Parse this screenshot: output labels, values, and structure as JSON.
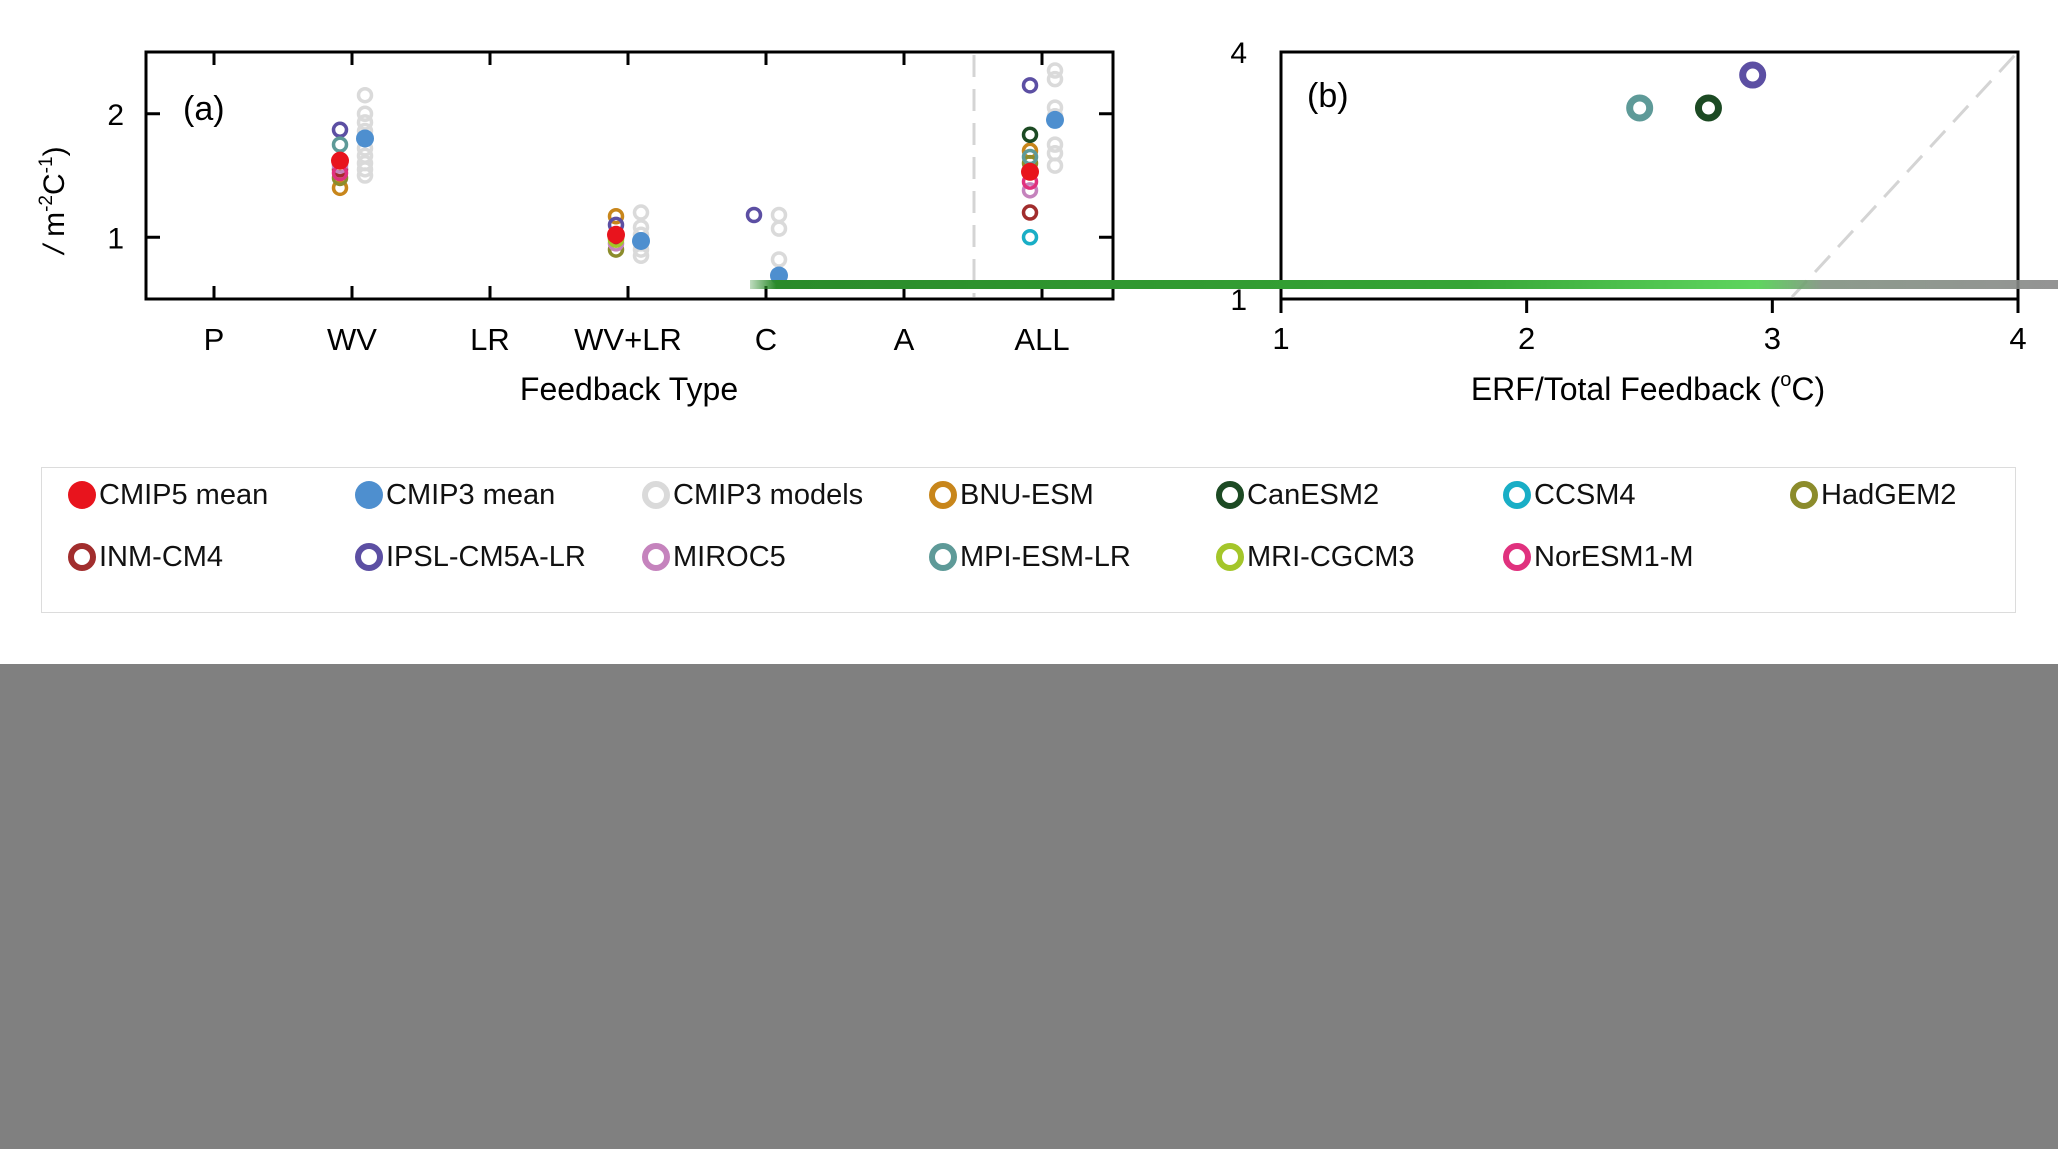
{
  "chart_data": [
    {
      "panel_label": "(a)",
      "type": "scatter",
      "xlabel": "Feedback Type",
      "ylabel": "/ m-2C-1",
      "categories": [
        "P",
        "WV",
        "LR",
        "WV+LR",
        "C",
        "A",
        "ALL"
      ],
      "ylim": [
        0.5,
        2.5
      ],
      "yticks": [
        "1",
        "2"
      ],
      "grid": false,
      "series": [
        {
          "name": "CMIP5 mean",
          "style": "filled",
          "color": "#e8141d",
          "points": [
            [
              "WV",
              1.62
            ],
            [
              "WV+LR",
              1.02
            ],
            [
              "ALL",
              1.53
            ]
          ]
        },
        {
          "name": "CMIP3 mean",
          "style": "filled",
          "color": "#4e8fcf",
          "points": [
            [
              "WV",
              1.8
            ],
            [
              "WV+LR",
              0.97
            ],
            [
              "C",
              0.69
            ],
            [
              "ALL",
              1.95
            ]
          ]
        },
        {
          "name": "CMIP3 models",
          "style": "ring",
          "color": "#dadada",
          "points": [
            [
              "WV",
              2.15
            ],
            [
              "WV",
              2.0
            ],
            [
              "WV",
              1.93
            ],
            [
              "WV",
              1.86
            ],
            [
              "WV",
              1.72
            ],
            [
              "WV",
              1.66
            ],
            [
              "WV",
              1.6
            ],
            [
              "WV",
              1.55
            ],
            [
              "WV",
              1.5
            ],
            [
              "WV+LR",
              1.2
            ],
            [
              "WV+LR",
              1.08
            ],
            [
              "WV+LR",
              1.02
            ],
            [
              "WV+LR",
              0.95
            ],
            [
              "WV+LR",
              0.9
            ],
            [
              "WV+LR",
              0.85
            ],
            [
              "C",
              1.18
            ],
            [
              "C",
              1.07
            ],
            [
              "C",
              0.82
            ],
            [
              "ALL",
              2.35
            ],
            [
              "ALL",
              2.28
            ],
            [
              "ALL",
              2.05
            ],
            [
              "ALL",
              1.98
            ],
            [
              "ALL",
              1.75
            ],
            [
              "ALL",
              1.68
            ],
            [
              "ALL",
              1.58
            ]
          ]
        },
        {
          "name": "BNU-ESM",
          "style": "ring",
          "color": "#c8861b",
          "points": [
            [
              "WV",
              1.4
            ],
            [
              "WV+LR",
              1.17
            ],
            [
              "ALL",
              1.7
            ]
          ]
        },
        {
          "name": "CanESM2",
          "style": "ring",
          "color": "#1c4a23",
          "points": [
            [
              "ALL",
              1.83
            ]
          ]
        },
        {
          "name": "CCSM4",
          "style": "ring",
          "color": "#19aec6",
          "points": [
            [
              "ALL",
              1.0
            ]
          ]
        },
        {
          "name": "HadGEM2",
          "style": "ring",
          "color": "#8c8c2c",
          "points": [
            [
              "WV",
              1.48
            ],
            [
              "WV+LR",
              0.9
            ],
            [
              "ALL",
              1.6
            ]
          ]
        },
        {
          "name": "INM-CM4",
          "style": "ring",
          "color": "#a12d2d",
          "points": [
            [
              "WV",
              1.55
            ],
            [
              "WV+LR",
              1.0
            ],
            [
              "ALL",
              1.2
            ]
          ]
        },
        {
          "name": "IPSL-CM5A-LR",
          "style": "ring",
          "color": "#5c4fa3",
          "points": [
            [
              "WV",
              1.87
            ],
            [
              "WV+LR",
              1.1
            ],
            [
              "C",
              1.18
            ],
            [
              "ALL",
              2.23
            ]
          ]
        },
        {
          "name": "MIROC5",
          "style": "ring",
          "color": "#c583bd",
          "points": [
            [
              "WV",
              1.58
            ],
            [
              "WV+LR",
              0.95
            ],
            [
              "ALL",
              1.38
            ]
          ]
        },
        {
          "name": "MPI-ESM-LR",
          "style": "ring",
          "color": "#5e9a98",
          "points": [
            [
              "WV",
              1.75
            ],
            [
              "ALL",
              1.65
            ]
          ]
        },
        {
          "name": "MRI-CGCM3",
          "style": "ring",
          "color": "#a4c62a",
          "points": [
            [
              "WV+LR",
              0.98
            ]
          ]
        },
        {
          "name": "NorESM1-M",
          "style": "ring",
          "color": "#e0317e",
          "points": [
            [
              "WV",
              1.52
            ],
            [
              "ALL",
              1.45
            ]
          ]
        }
      ]
    },
    {
      "panel_label": "(b)",
      "type": "scatter",
      "xlabel": "ERF/Total Feedback (oC)",
      "xlim": [
        1,
        4
      ],
      "ylim": [
        1,
        4
      ],
      "xticks": [
        "1",
        "2",
        "3",
        "4"
      ],
      "yticks": [
        "1",
        "4"
      ],
      "reference_line": "1:1 dashed",
      "grid": false,
      "points": [
        {
          "model": "MPI-ESM-LR",
          "x": 2.46,
          "y": 3.32,
          "color": "#5e9a98"
        },
        {
          "model": "CanESM2",
          "x": 2.74,
          "y": 3.32,
          "color": "#1c4a23"
        },
        {
          "model": "IPSL-CM5A-LR",
          "x": 2.92,
          "y": 3.72,
          "color": "#5c4fa3"
        }
      ]
    }
  ],
  "legend": {
    "items": [
      {
        "label": "CMIP5 mean",
        "style": "filled",
        "color": "#e8141d"
      },
      {
        "label": "CMIP3 mean",
        "style": "filled",
        "color": "#4e8fcf"
      },
      {
        "label": "CMIP3 models",
        "style": "ring",
        "color": "#dadada"
      },
      {
        "label": "BNU-ESM",
        "style": "ring",
        "color": "#c8861b"
      },
      {
        "label": "CanESM2",
        "style": "ring",
        "color": "#1c4a23"
      },
      {
        "label": "CCSM4",
        "style": "ring",
        "color": "#19aec6"
      },
      {
        "label": "HadGEM2",
        "style": "ring",
        "color": "#8c8c2c"
      },
      {
        "label": "INM-CM4",
        "style": "ring",
        "color": "#a12d2d"
      },
      {
        "label": "IPSL-CM5A-LR",
        "style": "ring",
        "color": "#5c4fa3"
      },
      {
        "label": "MIROC5",
        "style": "ring",
        "color": "#c583bd"
      },
      {
        "label": "MPI-ESM-LR",
        "style": "ring",
        "color": "#5e9a98"
      },
      {
        "label": "MRI-CGCM3",
        "style": "ring",
        "color": "#a4c62a"
      },
      {
        "label": "NorESM1-M",
        "style": "ring",
        "color": "#e0317e"
      }
    ]
  },
  "overlay": {
    "color": "#2a8a2a"
  },
  "background_color": "#808080"
}
